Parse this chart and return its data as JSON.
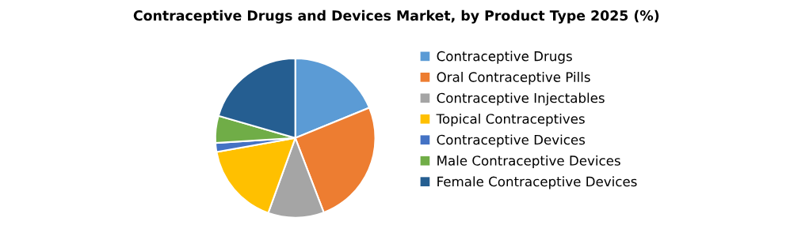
{
  "chart_data": {
    "type": "pie",
    "title": "Contraceptive Drugs and Devices Market, by Product Type 2025 (%)",
    "categories": [
      "Contraceptive Drugs",
      "Oral Contraceptive Pills",
      "Contraceptive Injectables",
      "Topical Contraceptives",
      "Contraceptive Devices",
      "Male Contraceptive Devices",
      "Female Contraceptive Devices"
    ],
    "values": [
      18.8,
      25.4,
      11.3,
      16.7,
      1.8,
      5.5,
      20.5
    ],
    "colors": [
      "#5b9bd5",
      "#ed7d31",
      "#a5a5a5",
      "#ffc000",
      "#4472c4",
      "#70ad47",
      "#255e91"
    ],
    "legend": "right"
  }
}
